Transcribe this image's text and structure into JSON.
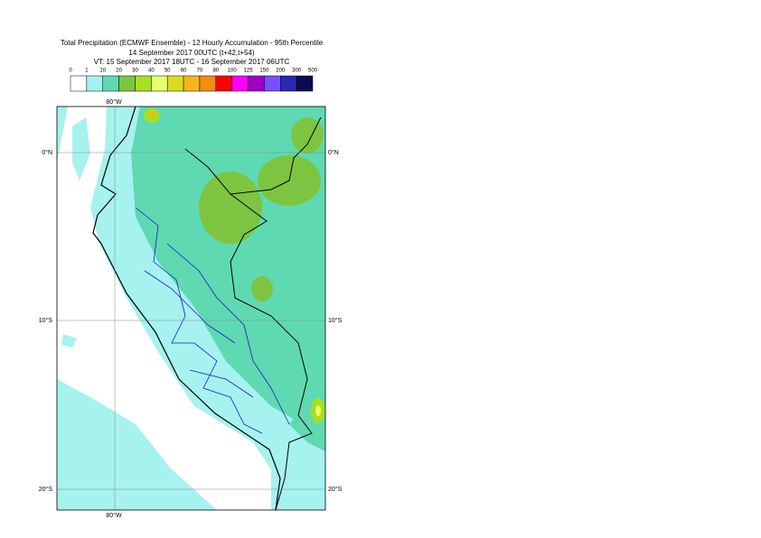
{
  "header": {
    "title": "Total Precipitation (ECMWF Ensemble) - 12 Hourly Accumulation - 95th Percentile",
    "run": "14 September 2017 00UTC (t+42,t+54)",
    "valid": "VT: 15 September 2017 18UTC - 16 September 2017 06UTC"
  },
  "legend": {
    "bounds": [
      0,
      1,
      10,
      20,
      30,
      40,
      50,
      60,
      70,
      80,
      100,
      125,
      150,
      200,
      300,
      500
    ],
    "colors": [
      "#ffffff",
      "#a6f2ee",
      "#5fd9b2",
      "#7dc540",
      "#a6e020",
      "#e6ff6e",
      "#dcdc1e",
      "#f5b41e",
      "#f58c14",
      "#ff0000",
      "#ff00ff",
      "#a000c8",
      "#7850ff",
      "#2828b4",
      "#0a0a50"
    ]
  },
  "map": {
    "meridian_label": "80°W",
    "parallel_labels": [
      "0°N",
      "10°S",
      "20°S"
    ]
  }
}
